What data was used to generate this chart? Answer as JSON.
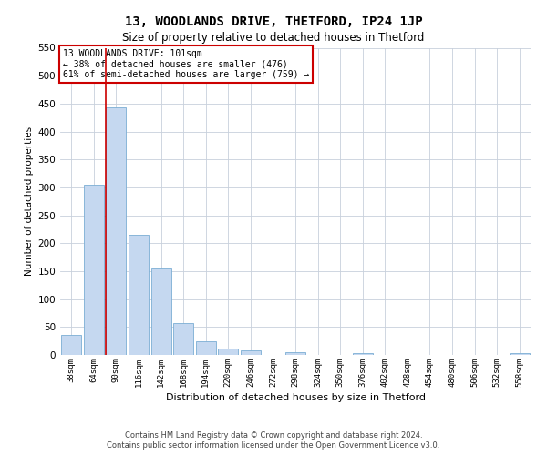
{
  "title": "13, WOODLANDS DRIVE, THETFORD, IP24 1JP",
  "subtitle": "Size of property relative to detached houses in Thetford",
  "xlabel": "Distribution of detached houses by size in Thetford",
  "ylabel": "Number of detached properties",
  "footer_line1": "Contains HM Land Registry data © Crown copyright and database right 2024.",
  "footer_line2": "Contains public sector information licensed under the Open Government Licence v3.0.",
  "bar_labels": [
    "38sqm",
    "64sqm",
    "90sqm",
    "116sqm",
    "142sqm",
    "168sqm",
    "194sqm",
    "220sqm",
    "246sqm",
    "272sqm",
    "298sqm",
    "324sqm",
    "350sqm",
    "376sqm",
    "402sqm",
    "428sqm",
    "454sqm",
    "480sqm",
    "506sqm",
    "532sqm",
    "558sqm"
  ],
  "bar_values": [
    36,
    305,
    443,
    215,
    155,
    57,
    25,
    11,
    8,
    0,
    5,
    0,
    0,
    3,
    0,
    0,
    0,
    0,
    0,
    0,
    3
  ],
  "bar_color": "#c5d8f0",
  "bar_edgecolor": "#7baed4",
  "ylim": [
    0,
    550
  ],
  "yticks": [
    0,
    50,
    100,
    150,
    200,
    250,
    300,
    350,
    400,
    450,
    500,
    550
  ],
  "property_line_index": 2,
  "property_line_color": "#cc0000",
  "annotation_title": "13 WOODLANDS DRIVE: 101sqm",
  "annotation_line1": "← 38% of detached houses are smaller (476)",
  "annotation_line2": "61% of semi-detached houses are larger (759) →",
  "annotation_box_facecolor": "#ffffff",
  "annotation_box_edgecolor": "#cc0000",
  "background_color": "#ffffff",
  "grid_color": "#c8d0dc",
  "title_fontsize": 10,
  "subtitle_fontsize": 8.5,
  "ylabel_fontsize": 7.5,
  "xlabel_fontsize": 8,
  "xtick_fontsize": 6.5,
  "ytick_fontsize": 7.5,
  "annotation_fontsize": 7,
  "footer_fontsize": 6
}
